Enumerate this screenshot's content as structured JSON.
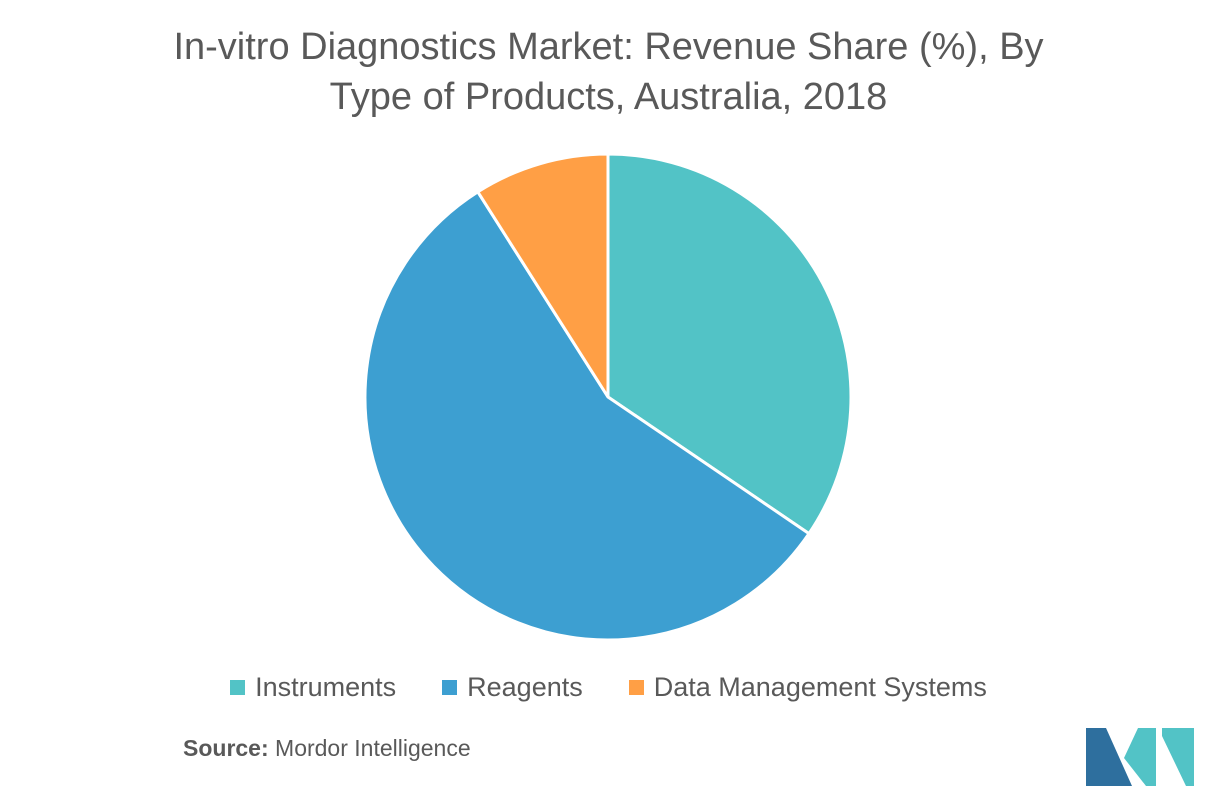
{
  "chart_data": {
    "type": "pie",
    "title": "In-vitro Diagnostics Market: Revenue Share (%), By Type of Products, Australia, 2018",
    "title_lines": [
      "In-vitro Diagnostics Market: Revenue Share (%), By",
      "Type of Products, Australia, 2018"
    ],
    "categories": [
      "Instruments",
      "Reagents",
      "Data Management Systems"
    ],
    "values": [
      34.5,
      56.5,
      9.0
    ],
    "colors": [
      "#52c3c6",
      "#3d9fd1",
      "#ff9f45"
    ],
    "legend_position": "bottom"
  },
  "source": {
    "label": "Source:",
    "text": "Mordor Intelligence"
  },
  "logo": {
    "colors": [
      "#2e6f9e",
      "#52c3c6"
    ]
  }
}
